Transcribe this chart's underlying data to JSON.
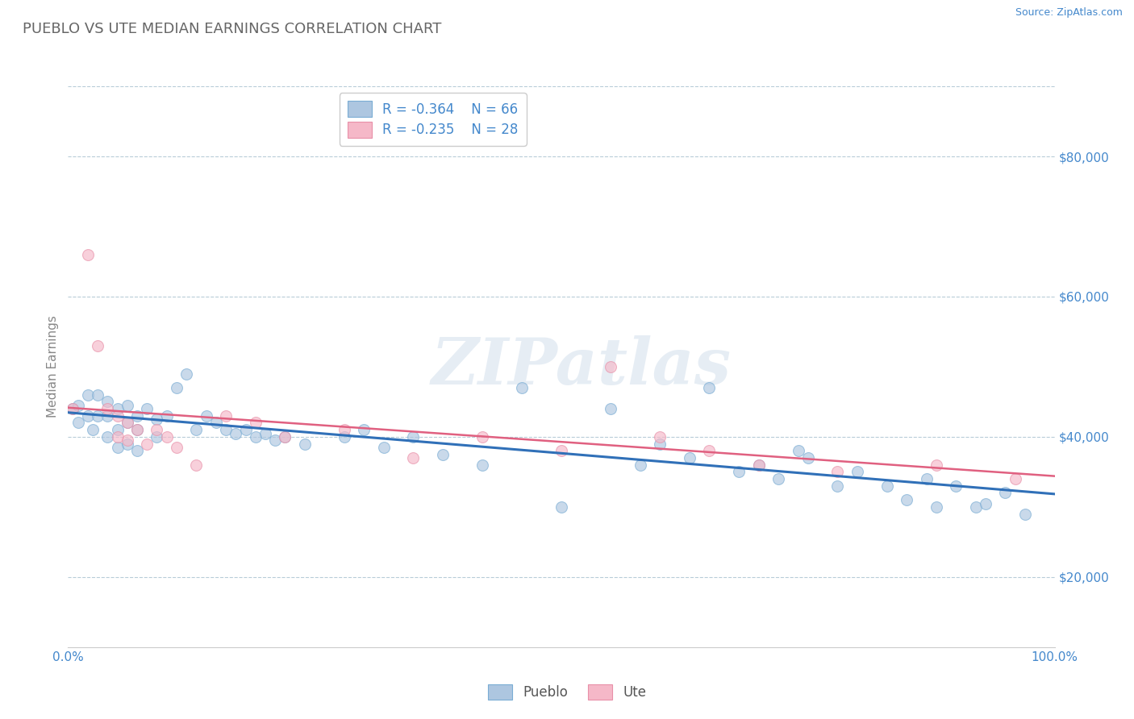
{
  "title": "PUEBLO VS UTE MEDIAN EARNINGS CORRELATION CHART",
  "source": "Source: ZipAtlas.com",
  "xlabel": "",
  "ylabel": "Median Earnings",
  "xlim": [
    0,
    1
  ],
  "ylim": [
    10000,
    90000
  ],
  "yticks": [
    20000,
    40000,
    60000,
    80000
  ],
  "ytick_labels": [
    "$20,000",
    "$40,000",
    "$60,000",
    "$80,000"
  ],
  "xticks": [
    0,
    0.1,
    0.2,
    0.3,
    0.4,
    0.5,
    0.6,
    0.7,
    0.8,
    0.9,
    1.0
  ],
  "xtick_labels": [
    "0.0%",
    "",
    "",
    "",
    "",
    "",
    "",
    "",
    "",
    "",
    "100.0%"
  ],
  "pueblo_color": "#adc6e0",
  "pueblo_edge_color": "#7aadd4",
  "ute_color": "#f5b8c8",
  "ute_edge_color": "#e890a8",
  "pueblo_line_color": "#3070b8",
  "ute_line_color": "#e06080",
  "legend_R_pueblo": "R = -0.364",
  "legend_N_pueblo": "N = 66",
  "legend_R_ute": "R = -0.235",
  "legend_N_ute": "N = 28",
  "pueblo_x": [
    0.005,
    0.01,
    0.01,
    0.02,
    0.02,
    0.025,
    0.03,
    0.03,
    0.04,
    0.04,
    0.04,
    0.05,
    0.05,
    0.05,
    0.06,
    0.06,
    0.06,
    0.07,
    0.07,
    0.07,
    0.08,
    0.09,
    0.09,
    0.1,
    0.11,
    0.12,
    0.13,
    0.14,
    0.15,
    0.16,
    0.17,
    0.18,
    0.19,
    0.2,
    0.21,
    0.22,
    0.24,
    0.28,
    0.3,
    0.32,
    0.35,
    0.38,
    0.42,
    0.46,
    0.5,
    0.55,
    0.58,
    0.6,
    0.63,
    0.65,
    0.68,
    0.7,
    0.72,
    0.74,
    0.75,
    0.78,
    0.8,
    0.83,
    0.85,
    0.87,
    0.88,
    0.9,
    0.92,
    0.93,
    0.95,
    0.97
  ],
  "pueblo_y": [
    44000,
    44500,
    42000,
    46000,
    43000,
    41000,
    46000,
    43000,
    45000,
    43000,
    40000,
    44000,
    41000,
    38500,
    44500,
    42000,
    39000,
    43000,
    41000,
    38000,
    44000,
    42500,
    40000,
    43000,
    47000,
    49000,
    41000,
    43000,
    42000,
    41000,
    40500,
    41000,
    40000,
    40500,
    39500,
    40000,
    39000,
    40000,
    41000,
    38500,
    40000,
    37500,
    36000,
    47000,
    30000,
    44000,
    36000,
    39000,
    37000,
    47000,
    35000,
    36000,
    34000,
    38000,
    37000,
    33000,
    35000,
    33000,
    31000,
    34000,
    30000,
    33000,
    30000,
    30500,
    32000,
    29000
  ],
  "ute_x": [
    0.005,
    0.02,
    0.03,
    0.04,
    0.05,
    0.05,
    0.06,
    0.06,
    0.07,
    0.08,
    0.09,
    0.1,
    0.11,
    0.13,
    0.16,
    0.19,
    0.22,
    0.28,
    0.35,
    0.42,
    0.5,
    0.55,
    0.6,
    0.65,
    0.7,
    0.78,
    0.88,
    0.96
  ],
  "ute_y": [
    44000,
    66000,
    53000,
    44000,
    43000,
    40000,
    42000,
    39500,
    41000,
    39000,
    41000,
    40000,
    38500,
    36000,
    43000,
    42000,
    40000,
    41000,
    37000,
    40000,
    38000,
    50000,
    40000,
    38000,
    36000,
    35000,
    36000,
    34000
  ],
  "watermark_text": "ZIPatlas",
  "background_color": "#ffffff",
  "grid_color": "#b8ccd8",
  "title_color": "#666666",
  "axis_label_color": "#4488cc",
  "marker_size": 100,
  "marker_alpha": 0.65
}
